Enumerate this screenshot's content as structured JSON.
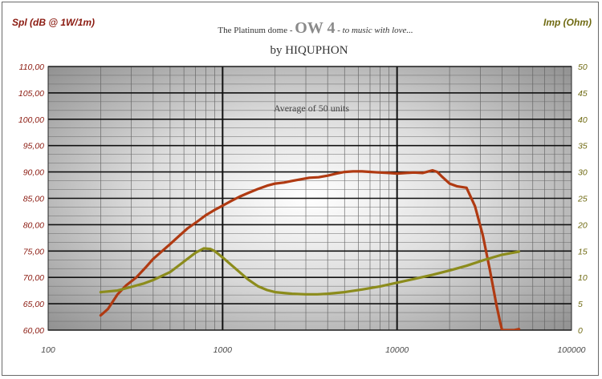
{
  "chart_data": {
    "type": "line",
    "title_parts": {
      "prefix": "The Platinum dome - ",
      "model": "OW 4",
      "suffix": " - to music with love..."
    },
    "subtitle": "by HIQUPHON",
    "annotation": "Average of 50 units",
    "ylabel_left": "Spl (dB @ 1W/1m)",
    "ylabel_right": "Imp (Ohm)",
    "x_scale": "log",
    "xlim": [
      100,
      100000
    ],
    "x_ticks": [
      "100",
      "1000",
      "10000",
      "100000"
    ],
    "ylim_left": [
      60,
      110
    ],
    "ylim_right": [
      0,
      50
    ],
    "y_ticks_left": [
      "60,00",
      "65,00",
      "70,00",
      "75,00",
      "80,00",
      "85,00",
      "90,00",
      "95,00",
      "100,00",
      "105,00",
      "110,00"
    ],
    "y_ticks_right": [
      "0",
      "5",
      "10",
      "15",
      "20",
      "25",
      "30",
      "35",
      "40",
      "45",
      "50"
    ],
    "grid": true,
    "colors": {
      "spl": "#b03a12",
      "imp": "#8c8c1c",
      "left_axis_text": "#8b1a10",
      "right_axis_text": "#6f6a12"
    },
    "series": [
      {
        "name": "Spl",
        "axis": "left",
        "x": [
          200,
          220,
          250,
          280,
          320,
          360,
          400,
          450,
          500,
          560,
          630,
          710,
          800,
          900,
          1000,
          1120,
          1250,
          1400,
          1600,
          1800,
          2000,
          2250,
          2500,
          2800,
          3150,
          3550,
          4000,
          4500,
          5000,
          5600,
          6300,
          7100,
          8000,
          9000,
          10000,
          11200,
          12500,
          14000,
          16000,
          17000,
          18000,
          20000,
          22000,
          25000,
          28000,
          31000,
          34000,
          37000,
          39000,
          40000,
          47000,
          50000
        ],
        "y": [
          62.8,
          64.0,
          66.8,
          68.5,
          70.0,
          71.8,
          73.5,
          75.0,
          76.3,
          77.8,
          79.3,
          80.5,
          81.8,
          82.8,
          83.6,
          84.5,
          85.3,
          86.0,
          86.8,
          87.4,
          87.8,
          88.0,
          88.3,
          88.6,
          88.9,
          89.0,
          89.3,
          89.7,
          90.0,
          90.1,
          90.1,
          90.0,
          89.9,
          89.8,
          89.7,
          89.8,
          89.9,
          89.8,
          90.3,
          90.0,
          89.2,
          87.8,
          87.3,
          87.0,
          83.5,
          78.0,
          71.5,
          65.0,
          61.5,
          60.0,
          60.0,
          60.2
        ]
      },
      {
        "name": "Imp",
        "axis": "right",
        "x": [
          200,
          250,
          300,
          350,
          400,
          500,
          600,
          700,
          780,
          850,
          900,
          1000,
          1100,
          1250,
          1400,
          1600,
          1800,
          2000,
          2500,
          3000,
          3500,
          4000,
          5000,
          6300,
          8000,
          10000,
          12500,
          16000,
          20000,
          25000,
          31500,
          40000,
          50000
        ],
        "y": [
          7.2,
          7.5,
          8.2,
          8.8,
          9.5,
          11.0,
          13.0,
          14.7,
          15.5,
          15.4,
          15.0,
          13.8,
          12.6,
          11.0,
          9.6,
          8.3,
          7.6,
          7.2,
          6.9,
          6.8,
          6.8,
          6.9,
          7.2,
          7.7,
          8.3,
          9.0,
          9.7,
          10.5,
          11.3,
          12.2,
          13.3,
          14.3,
          14.9
        ]
      }
    ]
  }
}
